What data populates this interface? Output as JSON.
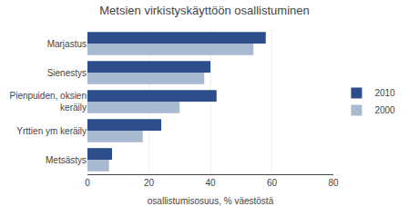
{
  "chart_data": {
    "type": "bar",
    "orientation": "horizontal",
    "title": "Metsien virkistyskäyttöön osallistuminen",
    "xlabel": "osallistumisosuus, % väestöstä",
    "categories": [
      "Marjastus",
      "Sienestys",
      "Pienpuiden, oksien\nkeräily",
      "Yrttien ym keräily",
      "Metsästys"
    ],
    "series": [
      {
        "name": "2010",
        "color": "#2E4E8B",
        "values": [
          58,
          40,
          42,
          24,
          8
        ]
      },
      {
        "name": "2000",
        "color": "#A8BAD0",
        "values": [
          54,
          38,
          30,
          18,
          7
        ]
      }
    ],
    "xlim": [
      0,
      80
    ],
    "xticks": [
      0,
      20,
      40,
      60,
      80
    ],
    "grid": true,
    "legend": "right"
  }
}
